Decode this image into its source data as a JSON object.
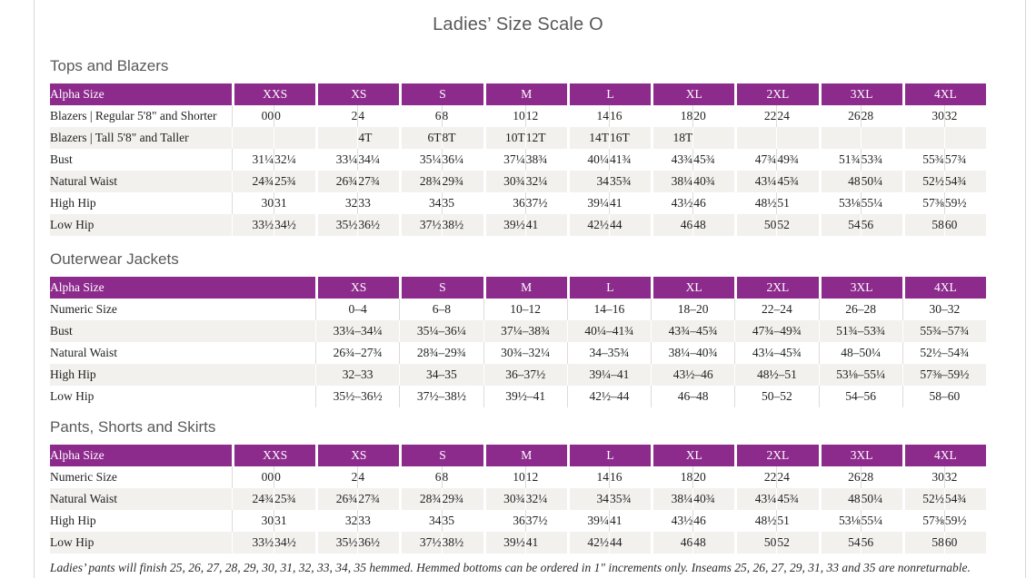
{
  "title": "Ladies’ Size Scale O",
  "colors": {
    "header_bg": "#8d2b8d",
    "header_text": "#ffffff",
    "row_stripe": "#f2f1ee",
    "cell_divider": "#dcdbd8",
    "heading_text": "#595959"
  },
  "footnote": "Ladies’ pants will finish 25, 26, 27, 28, 29, 30, 31, 32, 33, 34, 35 hemmed. Hemmed bottoms can be ordered in 1″ increments only. Inseams 25, 26, 27, 29, 31, 33 and 35 are nonreturnable.",
  "tables": [
    {
      "name": "tops-and-blazers",
      "title": "Tops and Blazers",
      "label_header": "Alpha Size",
      "label_width": 200,
      "paired": true,
      "columns": [
        "XXS",
        "XS",
        "S",
        "M",
        "L",
        "XL",
        "2XL",
        "3XL",
        "4XL"
      ],
      "rows": [
        {
          "label": "Blazers | Regular 5'8\" and Shorter",
          "cells": [
            [
              "00",
              "0"
            ],
            [
              "2",
              "4"
            ],
            [
              "6",
              "8"
            ],
            [
              "10",
              "12"
            ],
            [
              "14",
              "16"
            ],
            [
              "18",
              "20"
            ],
            [
              "22",
              "24"
            ],
            [
              "26",
              "28"
            ],
            [
              "30",
              "32"
            ]
          ]
        },
        {
          "label": "Blazers | Tall 5'8\" and Taller",
          "cells": [
            [
              "",
              ""
            ],
            [
              "",
              "4T"
            ],
            [
              "6T",
              "8T"
            ],
            [
              "10T",
              "12T"
            ],
            [
              "14T",
              "16T"
            ],
            [
              "18T",
              ""
            ],
            [
              "",
              ""
            ],
            [
              "",
              ""
            ],
            [
              "",
              ""
            ]
          ]
        },
        {
          "label": "Bust",
          "cells": [
            [
              "31¼",
              "32¼"
            ],
            [
              "33¼",
              "34¼"
            ],
            [
              "35¼",
              "36¼"
            ],
            [
              "37¼",
              "38¾"
            ],
            [
              "40¼",
              "41¾"
            ],
            [
              "43¾",
              "45¾"
            ],
            [
              "47¾",
              "49¾"
            ],
            [
              "51¾",
              "53¾"
            ],
            [
              "55¾",
              "57¾"
            ]
          ]
        },
        {
          "label": "Natural Waist",
          "cells": [
            [
              "24¾",
              "25¾"
            ],
            [
              "26¾",
              "27¾"
            ],
            [
              "28¾",
              "29¾"
            ],
            [
              "30¾",
              "32¼"
            ],
            [
              "34",
              "35¾"
            ],
            [
              "38¼",
              "40¾"
            ],
            [
              "43¼",
              "45¾"
            ],
            [
              "48",
              "50¼"
            ],
            [
              "52½",
              "54¾"
            ]
          ]
        },
        {
          "label": "High Hip",
          "cells": [
            [
              "30",
              "31"
            ],
            [
              "32",
              "33"
            ],
            [
              "34",
              "35"
            ],
            [
              "36",
              "37½"
            ],
            [
              "39¼",
              "41"
            ],
            [
              "43½",
              "46"
            ],
            [
              "48½",
              "51"
            ],
            [
              "53⅛",
              "55¼"
            ],
            [
              "57⅜",
              "59½"
            ]
          ]
        },
        {
          "label": "Low Hip",
          "cells": [
            [
              "33½",
              "34½"
            ],
            [
              "35½",
              "36½"
            ],
            [
              "37½",
              "38½"
            ],
            [
              "39½",
              "41"
            ],
            [
              "42½",
              "44"
            ],
            [
              "46",
              "48"
            ],
            [
              "50",
              "52"
            ],
            [
              "54",
              "56"
            ],
            [
              "58",
              "60"
            ]
          ]
        }
      ]
    },
    {
      "name": "outerwear-jackets",
      "title": "Outerwear Jackets",
      "label_header": "Alpha Size",
      "label_width": 292,
      "paired": false,
      "columns": [
        "XS",
        "S",
        "M",
        "L",
        "XL",
        "2XL",
        "3XL",
        "4XL"
      ],
      "rows": [
        {
          "label": "Numeric Size",
          "cells": [
            "0–4",
            "6–8",
            "10–12",
            "14–16",
            "18–20",
            "22–24",
            "26–28",
            "30–32"
          ]
        },
        {
          "label": "Bust",
          "cells": [
            "33¼–34¼",
            "35¼–36¼",
            "37¼–38¾",
            "40¼–41¾",
            "43¾–45¾",
            "47¾–49¾",
            "51¾–53¾",
            "55¾–57¾"
          ]
        },
        {
          "label": "Natural Waist",
          "cells": [
            "26¾–27¾",
            "28¾–29¾",
            "30¾–32¼",
            "34–35¾",
            "38¼–40¾",
            "43¼–45¾",
            "48–50¼",
            "52½–54¾"
          ]
        },
        {
          "label": "High Hip",
          "cells": [
            "32–33",
            "34–35",
            "36–37½",
            "39¼–41",
            "43½–46",
            "48½–51",
            "53⅛–55¼",
            "57⅜–59½"
          ]
        },
        {
          "label": "Low Hip",
          "cells": [
            "35½–36½",
            "37½–38½",
            "39½–41",
            "42½–44",
            "46–48",
            "50–52",
            "54–56",
            "58–60"
          ]
        }
      ]
    },
    {
      "name": "pants-shorts-skirts",
      "title": "Pants, Shorts and Skirts",
      "label_header": "Alpha Size",
      "label_width": 200,
      "paired": true,
      "columns": [
        "XXS",
        "XS",
        "S",
        "M",
        "L",
        "XL",
        "2XL",
        "3XL",
        "4XL"
      ],
      "rows": [
        {
          "label": "Numeric Size",
          "cells": [
            [
              "00",
              "0"
            ],
            [
              "2",
              "4"
            ],
            [
              "6",
              "8"
            ],
            [
              "10",
              "12"
            ],
            [
              "14",
              "16"
            ],
            [
              "18",
              "20"
            ],
            [
              "22",
              "24"
            ],
            [
              "26",
              "28"
            ],
            [
              "30",
              "32"
            ]
          ]
        },
        {
          "label": "Natural Waist",
          "cells": [
            [
              "24¾",
              "25¾"
            ],
            [
              "26¾",
              "27¾"
            ],
            [
              "28¾",
              "29¾"
            ],
            [
              "30¾",
              "32¼"
            ],
            [
              "34",
              "35¾"
            ],
            [
              "38¼",
              "40¾"
            ],
            [
              "43¼",
              "45¾"
            ],
            [
              "48",
              "50¼"
            ],
            [
              "52½",
              "54¾"
            ]
          ]
        },
        {
          "label": "High Hip",
          "cells": [
            [
              "30",
              "31"
            ],
            [
              "32",
              "33"
            ],
            [
              "34",
              "35"
            ],
            [
              "36",
              "37½"
            ],
            [
              "39¼",
              "41"
            ],
            [
              "43½",
              "46"
            ],
            [
              "48½",
              "51"
            ],
            [
              "53⅛",
              "55¼"
            ],
            [
              "57⅜",
              "59½"
            ]
          ]
        },
        {
          "label": "Low Hip",
          "cells": [
            [
              "33½",
              "34½"
            ],
            [
              "35½",
              "36½"
            ],
            [
              "37½",
              "38½"
            ],
            [
              "39½",
              "41"
            ],
            [
              "42½",
              "44"
            ],
            [
              "46",
              "48"
            ],
            [
              "50",
              "52"
            ],
            [
              "54",
              "56"
            ],
            [
              "58",
              "60"
            ]
          ]
        }
      ]
    }
  ]
}
